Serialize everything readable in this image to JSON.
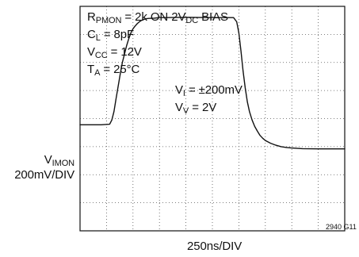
{
  "chart_data": {
    "type": "line",
    "title": "",
    "conditions": [
      {
        "main": "R",
        "sub": "PMON",
        "rest_a": " = 2k ON 2V",
        "sub2": "DC",
        "rest_b": " BIAS"
      },
      {
        "main": "C",
        "sub": "L",
        "rest": " = 8pF"
      },
      {
        "main": "V",
        "sub": "CC",
        "rest": " = 12V"
      },
      {
        "main": "T",
        "sub": "A",
        "rest": " = 25°C"
      }
    ],
    "signal_labels": [
      {
        "main": "V",
        "sub": "I",
        "rest": " = ±200mV"
      },
      {
        "main": "V",
        "sub": "V",
        "rest": " = 2V"
      }
    ],
    "y_label": {
      "main": "V",
      "sub": "IMON",
      "scale": "200mV/DIV"
    },
    "x_label": "250ns/DIV",
    "figure_id": "2940 G11",
    "grid": {
      "x_divisions": 10,
      "y_divisions": 8,
      "style": "dotted"
    },
    "xlim": [
      0,
      2500
    ],
    "ylim_div": [
      -4,
      4
    ],
    "x_unit": "ns",
    "y_unit": "div",
    "series": [
      {
        "x": [
          0,
          200,
          280,
          300,
          320,
          340,
          360,
          380,
          400,
          420,
          440,
          460,
          480,
          500,
          520,
          540,
          560,
          580,
          600,
          625,
          650,
          700,
          750,
          800,
          1000,
          1200,
          1450,
          1480,
          1500,
          1520,
          1540,
          1560,
          1580,
          1600,
          1625,
          1650,
          1675,
          1700,
          1725,
          1750,
          1800,
          1850,
          1900,
          1950,
          2000,
          2100,
          2250,
          2500
        ],
        "y": [
          -0.22,
          -0.22,
          -0.2,
          -0.05,
          0.25,
          0.7,
          1.15,
          1.6,
          2.0,
          2.3,
          2.6,
          2.85,
          3.05,
          3.2,
          3.3,
          3.38,
          3.45,
          3.5,
          3.53,
          3.56,
          3.57,
          3.58,
          3.6,
          3.6,
          3.61,
          3.6,
          3.6,
          3.45,
          3.05,
          2.4,
          1.7,
          1.1,
          0.6,
          0.25,
          -0.05,
          -0.28,
          -0.45,
          -0.6,
          -0.7,
          -0.78,
          -0.88,
          -0.95,
          -1.0,
          -1.03,
          -1.05,
          -1.07,
          -1.08,
          -1.08
        ]
      }
    ]
  }
}
